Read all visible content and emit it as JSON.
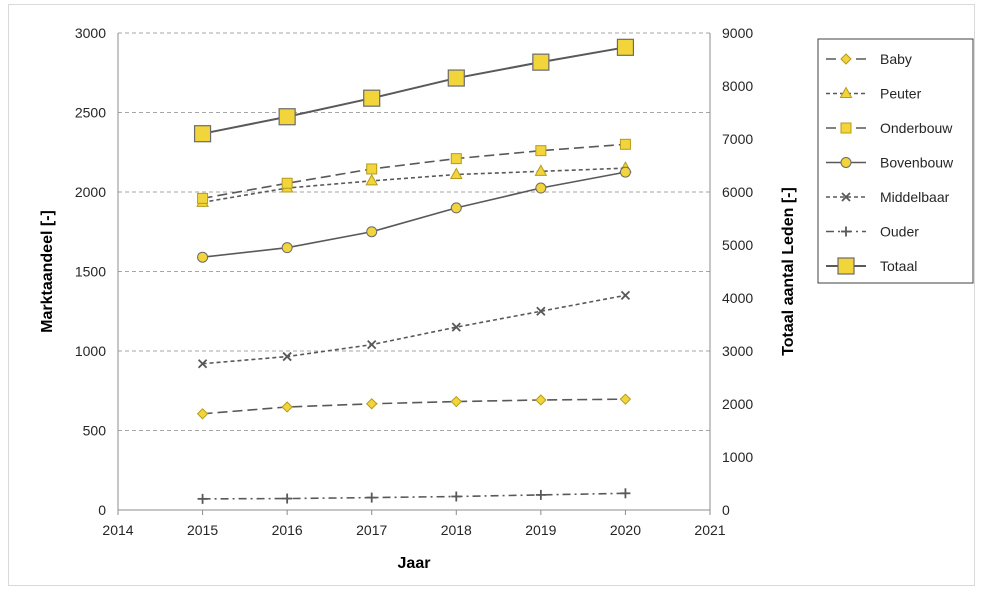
{
  "chart_data": {
    "type": "line",
    "title": "",
    "xlabel": "Jaar",
    "ylabel": "Marktaandeel [-]",
    "y2label": "Totaal aantal Leden [-]",
    "xlim": [
      2014,
      2021
    ],
    "ylim": [
      0,
      3000
    ],
    "y2lim": [
      0,
      9000
    ],
    "x_ticks": [
      "2014",
      "2015",
      "2016",
      "2017",
      "2018",
      "2019",
      "2020",
      "2021"
    ],
    "y_ticks": [
      "0",
      "500",
      "1000",
      "1500",
      "2000",
      "2500",
      "3000"
    ],
    "y2_ticks": [
      "0",
      "1000",
      "2000",
      "3000",
      "4000",
      "5000",
      "6000",
      "7000",
      "8000",
      "9000"
    ],
    "grid": "horizontal dashed",
    "legend_position": "right",
    "x": [
      2015,
      2016,
      2017,
      2018,
      2019,
      2020
    ],
    "series": [
      {
        "name": "Baby",
        "axis": "left",
        "marker": "diamond",
        "line": "long-dash",
        "line_color": "#595959",
        "marker_color": "#f2d43b",
        "values": [
          605,
          648,
          668,
          682,
          692,
          697
        ]
      },
      {
        "name": "Peuter",
        "axis": "left",
        "marker": "triangle",
        "line": "short-dash",
        "line_color": "#595959",
        "marker_color": "#f2d43b",
        "values": [
          1935,
          2025,
          2070,
          2110,
          2130,
          2150
        ]
      },
      {
        "name": "Onderbouw",
        "axis": "left",
        "marker": "square",
        "line": "long-dash",
        "line_color": "#595959",
        "marker_color": "#f2d43b",
        "values": [
          1960,
          2055,
          2145,
          2210,
          2260,
          2300
        ]
      },
      {
        "name": "Bovenbouw",
        "axis": "left",
        "marker": "circle",
        "line": "solid",
        "line_color": "#595959",
        "marker_color": "#f2d43b",
        "values": [
          1590,
          1650,
          1750,
          1900,
          2025,
          2125
        ]
      },
      {
        "name": "Middelbaar",
        "axis": "left",
        "marker": "x",
        "line": "short-dash",
        "line_color": "#595959",
        "marker_color": "#595959",
        "values": [
          920,
          965,
          1040,
          1150,
          1250,
          1350
        ]
      },
      {
        "name": "Ouder",
        "axis": "left",
        "marker": "plus",
        "line": "dash-dot",
        "line_color": "#595959",
        "marker_color": "#595959",
        "values": [
          70,
          72,
          78,
          85,
          95,
          105
        ]
      },
      {
        "name": "Totaal",
        "axis": "right",
        "marker": "big-square",
        "line": "solid",
        "line_color": "#595959",
        "marker_color": "#f2d43b",
        "values": [
          7100,
          7420,
          7770,
          8150,
          8450,
          8730
        ]
      }
    ]
  }
}
